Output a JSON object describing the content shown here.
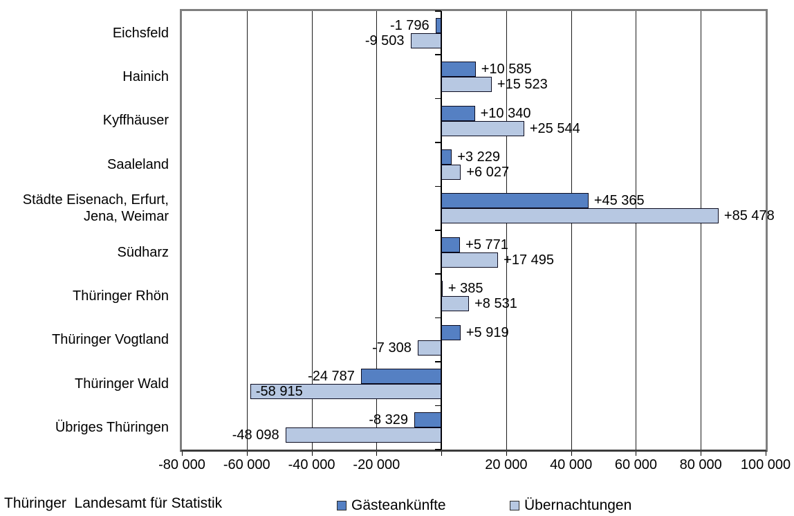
{
  "chart_data": {
    "type": "bar",
    "orientation": "horizontal",
    "title": "",
    "categories": [
      "Eichsfeld",
      "Hainich",
      "Kyffhäuser",
      "Saaleland",
      "Städte Eisenach, Erfurt,\nJena, Weimar",
      "Südharz",
      "Thüringer Rhön",
      "Thüringer Vogtland",
      "Thüringer Wald",
      "Übriges Thüringen"
    ],
    "series": [
      {
        "name": "Gästeankünfte",
        "key": "gaesteankuenfte",
        "color": "#5580C3",
        "border_color": "#0a0a1e",
        "values": [
          -1796,
          10585,
          10340,
          3229,
          45365,
          5771,
          385,
          5919,
          -24787,
          -8329
        ],
        "point_labels": [
          "-1 796",
          "+10 585",
          "+10 340",
          "+3 229",
          "+45 365",
          "+5 771",
          "+ 385",
          "+5 919",
          "-24 787",
          "-8 329"
        ]
      },
      {
        "name": "Übernachtungen",
        "key": "uebernachtungen",
        "color": "#B7C8E2",
        "border_color": "#0a0a1e",
        "values": [
          -9503,
          15523,
          25544,
          6027,
          85478,
          17495,
          8531,
          -7308,
          -58915,
          -48098
        ],
        "point_labels": [
          "-9 503",
          "+15 523",
          "+25 544",
          "+6 027",
          "+85 478",
          "+17 495",
          "+8 531",
          "-7 308",
          "-58 915",
          "-48 098"
        ],
        "inside_label_indexes": [
          8
        ]
      }
    ],
    "x_axis": {
      "min": -80000,
      "max": 100000,
      "tick_step": 20000,
      "tick_labels": [
        "-80 000",
        "-60 000",
        "-40 000",
        "-20 000",
        "",
        "20 000",
        "40 000",
        "60 000",
        "80 000",
        "100 000"
      ]
    },
    "grid": "vertical-major",
    "legend_position": "bottom",
    "plot_border_color": "#7f7f7f",
    "gridline_color": "#1a1a1a"
  },
  "footer": {
    "source": "Thüringer  Landesamt für Statistik"
  }
}
